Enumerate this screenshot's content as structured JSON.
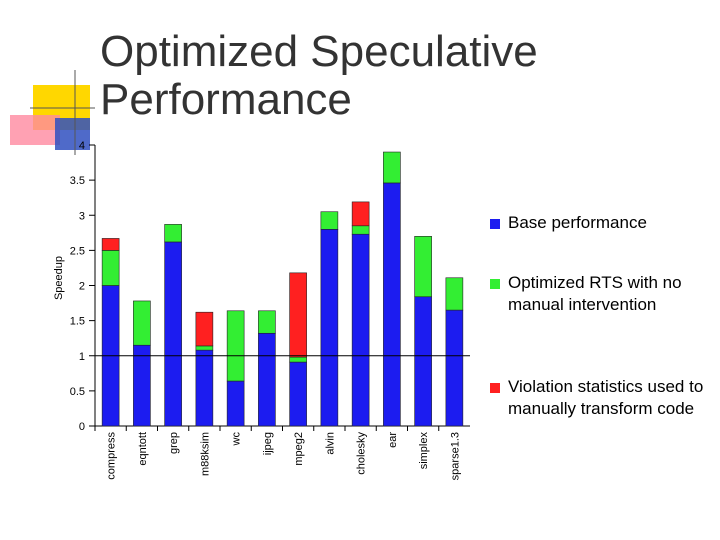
{
  "chart_data": {
    "type": "stacked_bar",
    "title": "Optimized Speculative Performance",
    "y_label": "Speedup",
    "categories": [
      "compress",
      "eqntott",
      "grep",
      "m88ksim",
      "wc",
      "ijpeg",
      "mpeg2",
      "alvin",
      "cholesky",
      "ear",
      "simplex",
      "sparse1.3"
    ],
    "series": [
      {
        "name": "Base performance",
        "color": "#1c1cf0",
        "values": [
          2.0,
          1.15,
          2.62,
          1.08,
          0.64,
          1.32,
          0.91,
          2.8,
          2.73,
          3.46,
          1.84,
          1.65
        ]
      },
      {
        "name": "Optimized RTS with no manual intervention",
        "color": "#33ee33",
        "values": [
          0.5,
          0.63,
          0.25,
          0.06,
          1.0,
          0.32,
          0.07,
          0.25,
          0.12,
          0.44,
          0.86,
          0.46
        ]
      },
      {
        "name": "Violation statistics used to manually transform code",
        "color": "#ff2020",
        "values": [
          0.17,
          null,
          null,
          0.48,
          null,
          null,
          1.2,
          null,
          0.34,
          null,
          null,
          null
        ]
      }
    ],
    "ylim": [
      0,
      4
    ],
    "yticks": [
      0,
      0.5,
      1,
      1.5,
      2,
      2.5,
      3,
      3.5,
      4
    ],
    "reference_line": 1
  }
}
